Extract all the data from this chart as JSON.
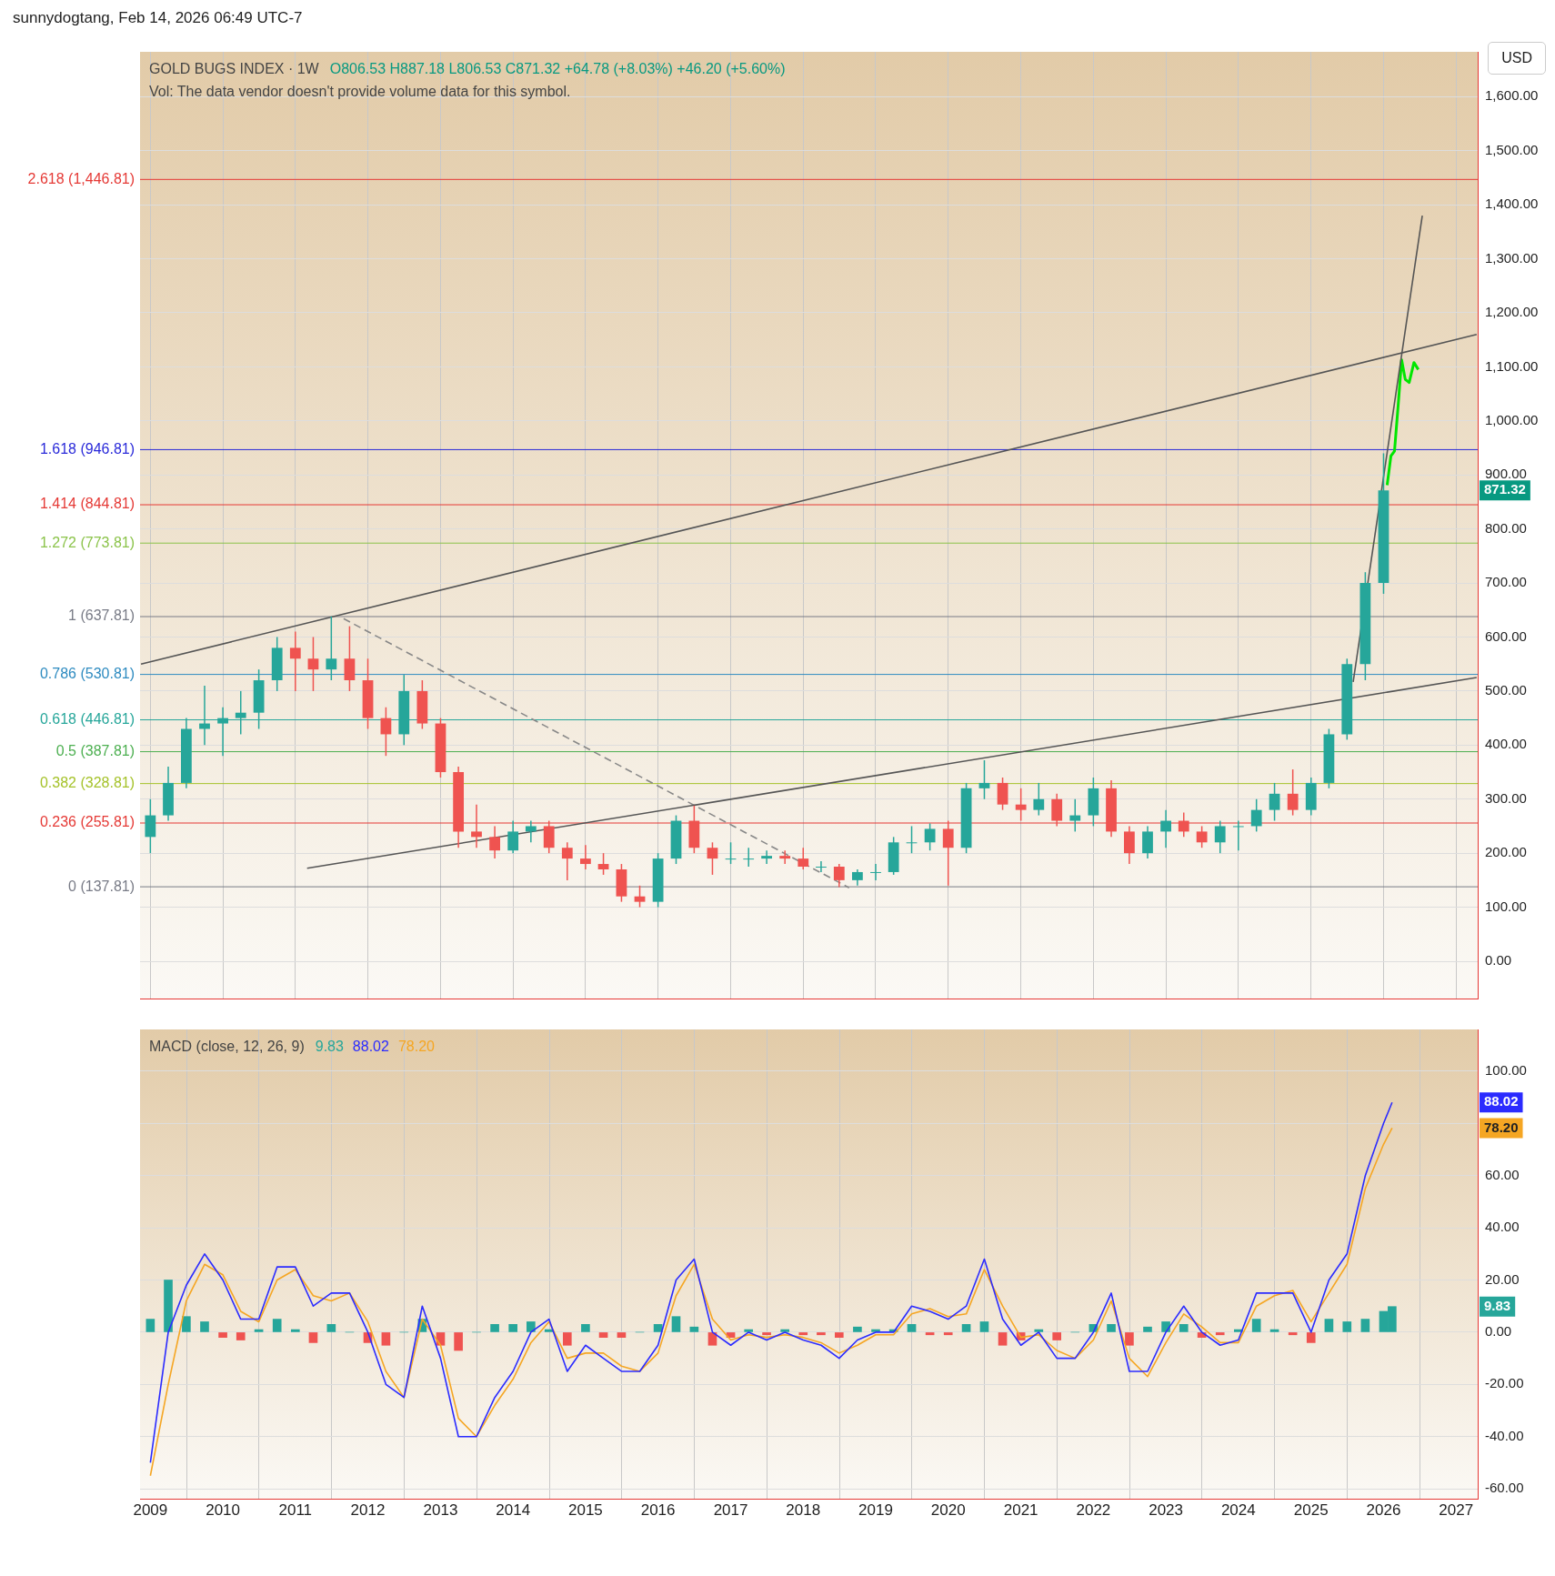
{
  "chart_data": [
    {
      "type": "candlestick",
      "title": "GOLD BUGS INDEX · 1W",
      "annotations": [
        "sunnydogtang, Feb 14, 2026 06:49 UTC-7",
        "O806.53 H887.18 L806.53 C871.32 +64.78 (+8.03%) +46.20 (+5.60%)",
        "Vol: The data vendor doesn't provide volume data for this symbol.",
        "USD",
        "871.32"
      ],
      "x": [
        "2009-01",
        "2009-04",
        "2009-07",
        "2009-10",
        "2010-01",
        "2010-04",
        "2010-07",
        "2010-10",
        "2011-01",
        "2011-04",
        "2011-07",
        "2011-10",
        "2012-01",
        "2012-04",
        "2012-07",
        "2012-10",
        "2013-01",
        "2013-04",
        "2013-07",
        "2013-10",
        "2014-01",
        "2014-04",
        "2014-07",
        "2014-10",
        "2015-01",
        "2015-04",
        "2015-07",
        "2015-10",
        "2016-01",
        "2016-04",
        "2016-07",
        "2016-10",
        "2017-01",
        "2017-04",
        "2017-07",
        "2017-10",
        "2018-01",
        "2018-04",
        "2018-07",
        "2018-10",
        "2019-01",
        "2019-04",
        "2019-07",
        "2019-10",
        "2020-01",
        "2020-04",
        "2020-07",
        "2020-10",
        "2021-01",
        "2021-04",
        "2021-07",
        "2021-10",
        "2022-01",
        "2022-04",
        "2022-07",
        "2022-10",
        "2023-01",
        "2023-04",
        "2023-07",
        "2023-10",
        "2024-01",
        "2024-04",
        "2024-07",
        "2024-10",
        "2025-01",
        "2025-04",
        "2025-07",
        "2025-10",
        "2026-01"
      ],
      "ohlc": [
        [
          230,
          300,
          200,
          270
        ],
        [
          270,
          360,
          260,
          330
        ],
        [
          330,
          450,
          320,
          430
        ],
        [
          430,
          510,
          400,
          440
        ],
        [
          440,
          470,
          380,
          450
        ],
        [
          450,
          500,
          420,
          460
        ],
        [
          460,
          540,
          430,
          520
        ],
        [
          520,
          600,
          500,
          580
        ],
        [
          580,
          610,
          500,
          560
        ],
        [
          560,
          600,
          500,
          540
        ],
        [
          540,
          638,
          520,
          560
        ],
        [
          560,
          620,
          500,
          520
        ],
        [
          520,
          560,
          430,
          450
        ],
        [
          450,
          470,
          380,
          420
        ],
        [
          420,
          530,
          400,
          500
        ],
        [
          500,
          520,
          430,
          440
        ],
        [
          440,
          450,
          340,
          350
        ],
        [
          350,
          360,
          210,
          240
        ],
        [
          240,
          290,
          210,
          230
        ],
        [
          230,
          250,
          190,
          205
        ],
        [
          205,
          260,
          200,
          240
        ],
        [
          240,
          260,
          220,
          250
        ],
        [
          250,
          260,
          200,
          210
        ],
        [
          210,
          220,
          150,
          190
        ],
        [
          190,
          215,
          170,
          180
        ],
        [
          180,
          200,
          160,
          170
        ],
        [
          170,
          180,
          110,
          120
        ],
        [
          120,
          140,
          100,
          110
        ],
        [
          110,
          200,
          100,
          190
        ],
        [
          190,
          270,
          180,
          260
        ],
        [
          260,
          288,
          200,
          210
        ],
        [
          210,
          220,
          160,
          190
        ],
        [
          190,
          220,
          180,
          190
        ],
        [
          190,
          210,
          175,
          190
        ],
        [
          190,
          205,
          180,
          195
        ],
        [
          195,
          205,
          180,
          190
        ],
        [
          190,
          210,
          170,
          175
        ],
        [
          175,
          185,
          165,
          175
        ],
        [
          175,
          180,
          137,
          150
        ],
        [
          150,
          170,
          140,
          165
        ],
        [
          165,
          180,
          150,
          165
        ],
        [
          165,
          230,
          160,
          220
        ],
        [
          220,
          250,
          200,
          220
        ],
        [
          220,
          255,
          205,
          245
        ],
        [
          245,
          260,
          140,
          210
        ],
        [
          210,
          330,
          200,
          320
        ],
        [
          320,
          372,
          300,
          330
        ],
        [
          330,
          340,
          280,
          290
        ],
        [
          290,
          320,
          260,
          280
        ],
        [
          280,
          330,
          270,
          300
        ],
        [
          300,
          310,
          250,
          260
        ],
        [
          260,
          300,
          240,
          270
        ],
        [
          270,
          340,
          250,
          320
        ],
        [
          320,
          335,
          230,
          240
        ],
        [
          240,
          250,
          180,
          200
        ],
        [
          200,
          250,
          190,
          240
        ],
        [
          240,
          280,
          210,
          260
        ],
        [
          260,
          275,
          230,
          240
        ],
        [
          240,
          250,
          210,
          220
        ],
        [
          220,
          260,
          200,
          250
        ],
        [
          250,
          260,
          205,
          250
        ],
        [
          250,
          300,
          240,
          280
        ],
        [
          280,
          330,
          260,
          310
        ],
        [
          310,
          355,
          270,
          280
        ],
        [
          280,
          340,
          270,
          330
        ],
        [
          330,
          430,
          320,
          420
        ],
        [
          420,
          560,
          410,
          550
        ],
        [
          550,
          720,
          520,
          700
        ],
        [
          700,
          940,
          680,
          871.32
        ]
      ],
      "series": [
        {
          "type": "line",
          "color": "#555555",
          "x": [
            "2008-11-15",
            "2027-04-15"
          ],
          "values": [
            550,
            1160
          ]
        },
        {
          "type": "line",
          "color": "#555555",
          "x": [
            "2011-03-01",
            "2027-04-15"
          ],
          "values": [
            172,
            525
          ]
        },
        {
          "type": "line",
          "color": "#888888",
          "line_style": "dashed",
          "x": [
            "2011-09-01",
            "2018-08-20"
          ],
          "values": [
            634,
            136
          ]
        },
        {
          "type": "line",
          "color": "#555555",
          "x": [
            "2025-08-01",
            "2026-07-15"
          ],
          "values": [
            517,
            1380
          ]
        },
        {
          "type": "line",
          "color": "#00e600",
          "x": [
            "2026-01-19",
            "2026-02-07",
            "2026-02-25",
            "2026-03-15",
            "2026-04-02",
            "2026-04-20",
            "2026-05-10",
            "2026-06-03",
            "2026-06-25"
          ],
          "values": [
            881,
            935,
            944,
            1026,
            1113,
            1077,
            1071,
            1108,
            1095
          ]
        }
      ],
      "ref_lines": [
        {
          "axis": "y",
          "value": 1446.81,
          "label": "2.618 (1,446.81)",
          "color": "#e53935"
        },
        {
          "axis": "y",
          "value": 946.81,
          "label": "1.618 (946.81)",
          "color": "#2929d9"
        },
        {
          "axis": "y",
          "value": 844.81,
          "label": "1.414 (844.81)",
          "color": "#e53935"
        },
        {
          "axis": "y",
          "value": 773.81,
          "label": "1.272 (773.81)",
          "color": "#8bc34a"
        },
        {
          "axis": "y",
          "value": 637.81,
          "label": "1 (637.81)",
          "color": "#787b86"
        },
        {
          "axis": "y",
          "value": 530.81,
          "label": "0.786 (530.81)",
          "color": "#2e8bc0"
        },
        {
          "axis": "y",
          "value": 446.81,
          "label": "0.618 (446.81)",
          "color": "#26a69a"
        },
        {
          "axis": "y",
          "value": 387.81,
          "label": "0.5 (387.81)",
          "color": "#4caf50"
        },
        {
          "axis": "y",
          "value": 328.81,
          "label": "0.382 (328.81)",
          "color": "#a5c22a"
        },
        {
          "axis": "y",
          "value": 255.81,
          "label": "0.236 (255.81)",
          "color": "#e53935"
        },
        {
          "axis": "y",
          "value": 137.81,
          "label": "0 (137.81)",
          "color": "#787b86"
        }
      ],
      "xlim": [
        "2008-11-10",
        "2027-04-20"
      ],
      "xticks": [
        "2009",
        "2010",
        "2011",
        "2012",
        "2013",
        "2014",
        "2015",
        "2016",
        "2017",
        "2018",
        "2019",
        "2020",
        "2021",
        "2022",
        "2023",
        "2024",
        "2025",
        "2026",
        "2027"
      ],
      "ylim": [
        -69,
        1683
      ],
      "yticks": [
        {
          "value": 0,
          "label": "0.00"
        },
        {
          "value": 100,
          "label": "100.00"
        },
        {
          "value": 200,
          "label": "200.00"
        },
        {
          "value": 300,
          "label": "300.00"
        },
        {
          "value": 400,
          "label": "400.00"
        },
        {
          "value": 500,
          "label": "500.00"
        },
        {
          "value": 600,
          "label": "600.00"
        },
        {
          "value": 700,
          "label": "700.00"
        },
        {
          "value": 800,
          "label": "800.00"
        },
        {
          "value": 900,
          "label": "900.00"
        },
        {
          "value": 1000,
          "label": "1,000.00"
        },
        {
          "value": 1100,
          "label": "1,100.00"
        },
        {
          "value": 1200,
          "label": "1,200.00"
        },
        {
          "value": 1300,
          "label": "1,300.00"
        },
        {
          "value": 1400,
          "label": "1,400.00"
        },
        {
          "value": 1500,
          "label": "1,500.00"
        },
        {
          "value": 1600,
          "label": "1,600.00"
        }
      ],
      "tick_labels": "y",
      "grid": true,
      "legend": false
    },
    {
      "type": "line",
      "title": "MACD (close, 12, 26, 9)",
      "annotations": [
        "9.83",
        "88.02",
        "78.20",
        "9.83",
        "88.02",
        "78.20"
      ],
      "x": [
        "2009-01",
        "2009-04",
        "2009-07",
        "2009-10",
        "2010-01",
        "2010-04",
        "2010-07",
        "2010-10",
        "2011-01",
        "2011-04",
        "2011-07",
        "2011-10",
        "2012-01",
        "2012-04",
        "2012-07",
        "2012-10",
        "2013-01",
        "2013-04",
        "2013-07",
        "2013-10",
        "2014-01",
        "2014-04",
        "2014-07",
        "2014-10",
        "2015-01",
        "2015-04",
        "2015-07",
        "2015-10",
        "2016-01",
        "2016-04",
        "2016-07",
        "2016-10",
        "2017-01",
        "2017-04",
        "2017-07",
        "2017-10",
        "2018-01",
        "2018-04",
        "2018-07",
        "2018-10",
        "2019-01",
        "2019-04",
        "2019-07",
        "2019-10",
        "2020-01",
        "2020-04",
        "2020-07",
        "2020-10",
        "2021-01",
        "2021-04",
        "2021-07",
        "2021-10",
        "2022-01",
        "2022-04",
        "2022-07",
        "2022-10",
        "2023-01",
        "2023-04",
        "2023-07",
        "2023-10",
        "2024-01",
        "2024-04",
        "2024-07",
        "2024-10",
        "2025-01",
        "2025-04",
        "2025-07",
        "2025-10",
        "2026-01",
        "2026-02-13"
      ],
      "series": [
        {
          "type": "bar",
          "color": "#26a69a",
          "values": [
            5,
            20,
            6,
            4,
            -2,
            -3,
            1,
            5,
            1,
            -4,
            3,
            0,
            -4,
            -5,
            0,
            5,
            -5,
            -7,
            0,
            3,
            3,
            4,
            1,
            -5,
            3,
            -2,
            -2,
            0,
            3,
            6,
            2,
            -5,
            -2,
            1,
            -1,
            1,
            -1,
            -1,
            -2,
            2,
            1,
            1,
            3,
            -1,
            -1,
            3,
            4,
            -5,
            -3,
            1,
            -3,
            0,
            3,
            3,
            -5,
            2,
            4,
            3,
            -2,
            -1,
            1,
            5,
            1,
            -1,
            -4,
            5,
            4,
            5,
            8,
            9.83
          ],
          "colors": [
            "#26a69a",
            "#26a69a",
            "#26a69a",
            "#26a69a",
            "#ef5350",
            "#ef5350",
            "#26a69a",
            "#26a69a",
            "#26a69a",
            "#ef5350",
            "#26a69a",
            "#26a69a",
            "#ef5350",
            "#ef5350",
            "#26a69a",
            "#26a69a",
            "#ef5350",
            "#ef5350",
            "#26a69a",
            "#26a69a",
            "#26a69a",
            "#26a69a",
            "#26a69a",
            "#ef5350",
            "#26a69a",
            "#ef5350",
            "#ef5350",
            "#26a69a",
            "#26a69a",
            "#26a69a",
            "#26a69a",
            "#ef5350",
            "#ef5350",
            "#26a69a",
            "#ef5350",
            "#26a69a",
            "#ef5350",
            "#ef5350",
            "#ef5350",
            "#26a69a",
            "#26a69a",
            "#26a69a",
            "#26a69a",
            "#ef5350",
            "#ef5350",
            "#26a69a",
            "#26a69a",
            "#ef5350",
            "#ef5350",
            "#26a69a",
            "#ef5350",
            "#26a69a",
            "#26a69a",
            "#26a69a",
            "#ef5350",
            "#26a69a",
            "#26a69a",
            "#26a69a",
            "#ef5350",
            "#ef5350",
            "#26a69a",
            "#26a69a",
            "#26a69a",
            "#ef5350",
            "#ef5350",
            "#26a69a",
            "#26a69a",
            "#26a69a",
            "#26a69a",
            "#26a69a"
          ]
        },
        {
          "type": "line",
          "color": "#2b2bff",
          "values": [
            -50,
            0,
            18,
            30,
            20,
            5,
            5,
            25,
            25,
            10,
            15,
            15,
            0,
            -20,
            -25,
            10,
            -10,
            -40,
            -40,
            -25,
            -15,
            0,
            5,
            -15,
            -5,
            -10,
            -15,
            -15,
            -5,
            20,
            28,
            0,
            -5,
            0,
            -3,
            0,
            -3,
            -5,
            -10,
            -3,
            0,
            0,
            10,
            8,
            5,
            10,
            28,
            5,
            -5,
            0,
            -10,
            -10,
            0,
            15,
            -15,
            -15,
            0,
            10,
            0,
            -5,
            -3,
            15,
            15,
            15,
            0,
            20,
            30,
            60,
            80,
            88.02
          ]
        },
        {
          "type": "line",
          "color": "#f5a623",
          "values": [
            -55,
            -20,
            12,
            26,
            22,
            8,
            4,
            20,
            24,
            14,
            12,
            15,
            4,
            -15,
            -25,
            5,
            -5,
            -33,
            -40,
            -28,
            -18,
            -4,
            4,
            -10,
            -8,
            -8,
            -13,
            -15,
            -8,
            14,
            26,
            5,
            -3,
            -1,
            -2,
            -1,
            -2,
            -4,
            -8,
            -5,
            -1,
            -1,
            7,
            9,
            6,
            7,
            24,
            10,
            -2,
            -1,
            -7,
            -10,
            -3,
            12,
            -10,
            -17,
            -4,
            7,
            2,
            -4,
            -4,
            10,
            14,
            16,
            4,
            15,
            26,
            55,
            72,
            78.2
          ]
        }
      ],
      "xlim": [
        "2008-11-10",
        "2027-04-20"
      ],
      "xticks": [
        "2009",
        "2010",
        "2011",
        "2012",
        "2013",
        "2014",
        "2015",
        "2016",
        "2017",
        "2018",
        "2019",
        "2020",
        "2021",
        "2022",
        "2023",
        "2024",
        "2025",
        "2026",
        "2027"
      ],
      "ylim": [
        -64,
        116
      ],
      "yticks": [
        {
          "value": -60,
          "label": "-60.00"
        },
        {
          "value": -40,
          "label": "-40.00"
        },
        {
          "value": -20,
          "label": "-20.00"
        },
        {
          "value": 0,
          "label": "0.00"
        },
        {
          "value": 20,
          "label": "20.00"
        },
        {
          "value": 40,
          "label": "40.00"
        },
        {
          "value": 60,
          "label": "60.00"
        },
        {
          "value": 80,
          "label": null
        },
        {
          "value": 100,
          "label": "100.00"
        }
      ],
      "grid": true,
      "legend": false
    }
  ]
}
